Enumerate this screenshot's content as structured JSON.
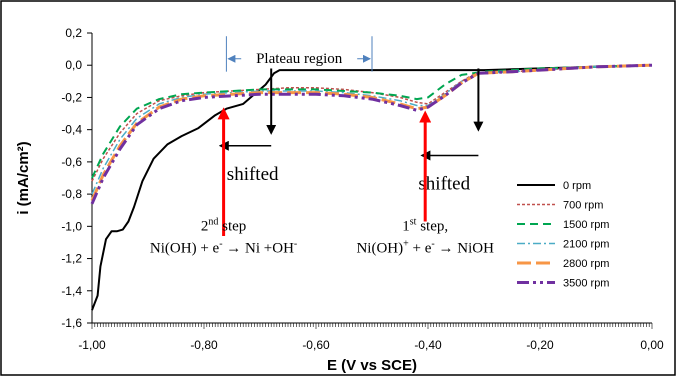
{
  "chart_data": {
    "type": "line",
    "xlabel": "E (V vs SCE)",
    "ylabel": "i (mA/cm²)",
    "xlim": [
      -1.0,
      0.0
    ],
    "ylim": [
      -1.6,
      0.2
    ],
    "x_ticks": [
      -1.0,
      -0.8,
      -0.6,
      -0.4,
      -0.2,
      0.0
    ],
    "x_tick_labels": [
      "-1,00",
      "-0,80",
      "-0,60",
      "-0,40",
      "-0,20",
      "0,00"
    ],
    "y_ticks": [
      0.2,
      0.0,
      -0.2,
      -0.4,
      -0.6,
      -0.8,
      -1.0,
      -1.2,
      -1.4,
      -1.6
    ],
    "y_tick_labels": [
      "0,2",
      "0,0",
      "-0,2",
      "-0,4",
      "-0,6",
      "-0,8",
      "-1,0",
      "-1,2",
      "-1,4",
      "-1,6"
    ],
    "grid": false,
    "legend_position": "bottom-right",
    "series": [
      {
        "name": "0 rpm",
        "color": "#000000",
        "dash": "solid",
        "points": [
          [
            -1.0,
            -1.52
          ],
          [
            -0.99,
            -1.43
          ],
          [
            -0.985,
            -1.25
          ],
          [
            -0.975,
            -1.08
          ],
          [
            -0.965,
            -1.03
          ],
          [
            -0.955,
            -1.03
          ],
          [
            -0.945,
            -1.02
          ],
          [
            -0.935,
            -0.97
          ],
          [
            -0.925,
            -0.88
          ],
          [
            -0.91,
            -0.72
          ],
          [
            -0.89,
            -0.58
          ],
          [
            -0.865,
            -0.49
          ],
          [
            -0.84,
            -0.44
          ],
          [
            -0.81,
            -0.39
          ],
          [
            -0.78,
            -0.31
          ],
          [
            -0.76,
            -0.27
          ],
          [
            -0.73,
            -0.24
          ],
          [
            -0.71,
            -0.18
          ],
          [
            -0.69,
            -0.12
          ],
          [
            -0.675,
            -0.05
          ],
          [
            -0.665,
            -0.03
          ],
          [
            -0.6,
            -0.03
          ],
          [
            -0.5,
            -0.03
          ],
          [
            -0.4,
            -0.03
          ],
          [
            -0.3,
            -0.03
          ],
          [
            -0.2,
            -0.02
          ],
          [
            -0.1,
            -0.01
          ],
          [
            0.0,
            0.0
          ]
        ]
      },
      {
        "name": "700 rpm",
        "color": "#C0504D",
        "dash": "3,2",
        "points": [
          [
            -1.0,
            -0.72
          ],
          [
            -0.98,
            -0.58
          ],
          [
            -0.95,
            -0.42
          ],
          [
            -0.92,
            -0.3
          ],
          [
            -0.88,
            -0.22
          ],
          [
            -0.84,
            -0.19
          ],
          [
            -0.8,
            -0.17
          ],
          [
            -0.75,
            -0.16
          ],
          [
            -0.7,
            -0.15
          ],
          [
            -0.65,
            -0.14
          ],
          [
            -0.6,
            -0.14
          ],
          [
            -0.55,
            -0.15
          ],
          [
            -0.5,
            -0.17
          ],
          [
            -0.45,
            -0.2
          ],
          [
            -0.42,
            -0.23
          ],
          [
            -0.4,
            -0.24
          ],
          [
            -0.37,
            -0.17
          ],
          [
            -0.34,
            -0.1
          ],
          [
            -0.32,
            -0.06
          ],
          [
            -0.3,
            -0.05
          ],
          [
            -0.25,
            -0.04
          ],
          [
            -0.2,
            -0.03
          ],
          [
            -0.1,
            -0.01
          ],
          [
            0.0,
            0.0
          ]
        ]
      },
      {
        "name": "1500 rpm",
        "color": "#00A651",
        "dash": "8,5",
        "points": [
          [
            -1.0,
            -0.7
          ],
          [
            -0.98,
            -0.55
          ],
          [
            -0.95,
            -0.38
          ],
          [
            -0.92,
            -0.27
          ],
          [
            -0.88,
            -0.21
          ],
          [
            -0.84,
            -0.18
          ],
          [
            -0.8,
            -0.17
          ],
          [
            -0.75,
            -0.16
          ],
          [
            -0.7,
            -0.15
          ],
          [
            -0.65,
            -0.15
          ],
          [
            -0.6,
            -0.15
          ],
          [
            -0.55,
            -0.16
          ],
          [
            -0.5,
            -0.17
          ],
          [
            -0.45,
            -0.19
          ],
          [
            -0.42,
            -0.21
          ],
          [
            -0.4,
            -0.2
          ],
          [
            -0.37,
            -0.12
          ],
          [
            -0.34,
            -0.06
          ],
          [
            -0.3,
            -0.04
          ],
          [
            -0.25,
            -0.03
          ],
          [
            -0.2,
            -0.02
          ],
          [
            -0.1,
            -0.01
          ],
          [
            0.0,
            0.0
          ]
        ]
      },
      {
        "name": "2100 rpm",
        "color": "#4BACC6",
        "dash": "8,3,2,3",
        "points": [
          [
            -1.0,
            -0.8
          ],
          [
            -0.98,
            -0.64
          ],
          [
            -0.95,
            -0.46
          ],
          [
            -0.92,
            -0.33
          ],
          [
            -0.88,
            -0.24
          ],
          [
            -0.84,
            -0.2
          ],
          [
            -0.8,
            -0.18
          ],
          [
            -0.75,
            -0.17
          ],
          [
            -0.7,
            -0.16
          ],
          [
            -0.65,
            -0.16
          ],
          [
            -0.6,
            -0.16
          ],
          [
            -0.55,
            -0.17
          ],
          [
            -0.5,
            -0.19
          ],
          [
            -0.45,
            -0.22
          ],
          [
            -0.42,
            -0.25
          ],
          [
            -0.4,
            -0.25
          ],
          [
            -0.37,
            -0.18
          ],
          [
            -0.34,
            -0.1
          ],
          [
            -0.31,
            -0.05
          ],
          [
            -0.25,
            -0.04
          ],
          [
            -0.2,
            -0.03
          ],
          [
            -0.1,
            -0.01
          ],
          [
            0.0,
            0.0
          ]
        ]
      },
      {
        "name": "2800 rpm",
        "color": "#F79646",
        "dash": "14,5",
        "points": [
          [
            -1.0,
            -0.84
          ],
          [
            -0.98,
            -0.68
          ],
          [
            -0.95,
            -0.5
          ],
          [
            -0.92,
            -0.36
          ],
          [
            -0.88,
            -0.26
          ],
          [
            -0.84,
            -0.21
          ],
          [
            -0.8,
            -0.19
          ],
          [
            -0.75,
            -0.18
          ],
          [
            -0.7,
            -0.17
          ],
          [
            -0.65,
            -0.17
          ],
          [
            -0.6,
            -0.17
          ],
          [
            -0.55,
            -0.18
          ],
          [
            -0.5,
            -0.2
          ],
          [
            -0.45,
            -0.24
          ],
          [
            -0.42,
            -0.27
          ],
          [
            -0.4,
            -0.26
          ],
          [
            -0.37,
            -0.19
          ],
          [
            -0.34,
            -0.11
          ],
          [
            -0.31,
            -0.05
          ],
          [
            -0.25,
            -0.04
          ],
          [
            -0.2,
            -0.03
          ],
          [
            -0.1,
            -0.01
          ],
          [
            0.0,
            0.0
          ]
        ]
      },
      {
        "name": "3500 rpm",
        "color": "#7030A0",
        "dash": "12,4,3,4,3,4",
        "points": [
          [
            -1.0,
            -0.86
          ],
          [
            -0.98,
            -0.7
          ],
          [
            -0.95,
            -0.52
          ],
          [
            -0.92,
            -0.37
          ],
          [
            -0.88,
            -0.27
          ],
          [
            -0.84,
            -0.22
          ],
          [
            -0.8,
            -0.2
          ],
          [
            -0.75,
            -0.19
          ],
          [
            -0.7,
            -0.18
          ],
          [
            -0.65,
            -0.18
          ],
          [
            -0.6,
            -0.18
          ],
          [
            -0.55,
            -0.19
          ],
          [
            -0.5,
            -0.21
          ],
          [
            -0.45,
            -0.25
          ],
          [
            -0.42,
            -0.28
          ],
          [
            -0.4,
            -0.26
          ],
          [
            -0.37,
            -0.19
          ],
          [
            -0.34,
            -0.11
          ],
          [
            -0.31,
            -0.05
          ],
          [
            -0.25,
            -0.04
          ],
          [
            -0.2,
            -0.03
          ],
          [
            -0.1,
            -0.01
          ],
          [
            0.0,
            0.0
          ]
        ]
      }
    ],
    "annotations": {
      "plateau": {
        "text": "Plateau region",
        "x_start": -0.76,
        "x_end": -0.5,
        "y": 0.04,
        "color": "#4F81BD"
      },
      "shift_arrows": [
        {
          "text": "shifted",
          "x_from": -0.68,
          "x_to": -0.77,
          "y": -0.5,
          "vertical_from_y": -0.02,
          "vertical_to_y": -0.42
        },
        {
          "text": "shifted",
          "x_from": -0.31,
          "x_to": -0.41,
          "y": -0.56,
          "vertical_from_y": -0.02,
          "vertical_to_y": -0.4
        }
      ],
      "step_arrows": [
        {
          "x": -0.765,
          "y_from": -1.06,
          "y_to": -0.28,
          "color": "#FF0000"
        },
        {
          "x": -0.405,
          "y_from": -0.97,
          "y_to": -0.3,
          "color": "#FF0000"
        }
      ],
      "steps": [
        {
          "label": "2",
          "label_sup": "nd",
          "label_rest": " step",
          "eq_a": "Ni(OH) + e",
          "eq_a_sup": "-",
          "eq_b": " → Ni +OH",
          "eq_b_sup": "-",
          "x": -0.765,
          "y": -1.0
        },
        {
          "label": "1",
          "label_sup": "st",
          "label_rest": " step,",
          "eq_a": "Ni(OH)",
          "eq_a_sup": "+",
          "eq_b": " + e",
          "eq_b_sup": "-",
          "eq_c": " → NiOH",
          "x": -0.405,
          "y": -1.0
        }
      ]
    }
  }
}
